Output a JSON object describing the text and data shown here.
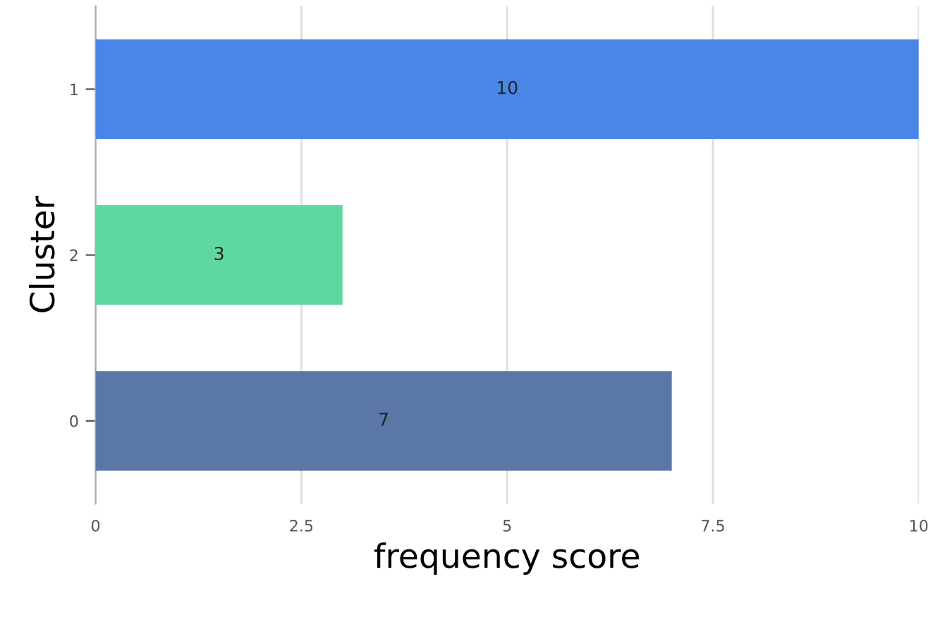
{
  "chart_data": {
    "type": "bar",
    "orientation": "horizontal",
    "categories": [
      "1",
      "2",
      "0"
    ],
    "values": [
      10,
      3,
      7
    ],
    "colors": [
      "#4a86e8",
      "#5fd8a0",
      "#5a77a6"
    ],
    "xlabel": "frequency score",
    "ylabel": "Cluster",
    "xlim": [
      0,
      10
    ],
    "xticks": [
      0,
      2.5,
      5,
      7.5,
      10
    ],
    "grid": "x",
    "data_labels": true
  }
}
